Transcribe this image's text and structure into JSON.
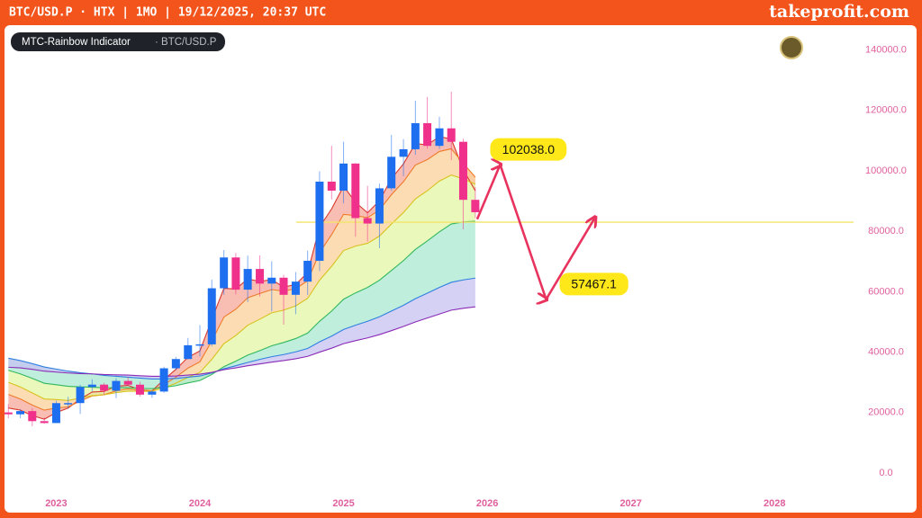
{
  "header": {
    "title": "BTC/USD.P · HTX | 1MO | 19/12/2025, 20:37 UTC",
    "brand": "takeprofit.com"
  },
  "chart_data": {
    "type": "candlestick",
    "indicator": "MTC-Rainbow Indicator",
    "symbol": "· BTC/USD.P",
    "up_color": "#1e6ff0",
    "down_color": "#f0318c",
    "xlim": [
      2022.64,
      2028.55
    ],
    "xticks": [
      2023,
      2024,
      2025,
      2026,
      2027,
      2028
    ],
    "ylim": [
      -7000,
      147000
    ],
    "yticks": [
      {
        "value": 0,
        "label": "0.0"
      },
      {
        "value": 20000,
        "label": "20000.0"
      },
      {
        "value": 40000,
        "label": "40000.0"
      },
      {
        "value": 60000,
        "label": "60000.0"
      },
      {
        "value": 80000,
        "label": "80000.0"
      },
      {
        "value": 100000,
        "label": "100000.0"
      },
      {
        "value": 120000,
        "label": "120000.0"
      },
      {
        "value": 140000,
        "label": "140000.0"
      }
    ],
    "x": [
      2022.667,
      2022.75,
      2022.833,
      2022.917,
      2023,
      2023.083,
      2023.167,
      2023.25,
      2023.333,
      2023.417,
      2023.5,
      2023.583,
      2023.667,
      2023.75,
      2023.833,
      2023.917,
      2024,
      2024.083,
      2024.167,
      2024.25,
      2024.333,
      2024.417,
      2024.5,
      2024.583,
      2024.667,
      2024.75,
      2024.833,
      2024.917,
      2025,
      2025.083,
      2025.167,
      2025.25,
      2025.333,
      2025.417,
      2025.5,
      2025.583,
      2025.667,
      2025.75,
      2025.833,
      2025.917
    ],
    "open": [
      20050,
      19430,
      20490,
      17160,
      16540,
      23130,
      23140,
      28470,
      29250,
      27220,
      30470,
      29230,
      25940,
      26960,
      34650,
      37720,
      42280,
      42580,
      61130,
      71330,
      60670,
      67520,
      62680,
      64630,
      58970,
      63330,
      70220,
      96410,
      93430,
      102410,
      84350,
      82550,
      94210,
      104640,
      107140,
      115760,
      108250,
      114050,
      109600,
      90400
    ],
    "high": [
      22800,
      21100,
      21480,
      18400,
      23950,
      25250,
      29200,
      31000,
      29820,
      31400,
      31800,
      30200,
      27480,
      35200,
      38450,
      44700,
      48970,
      64000,
      73800,
      72800,
      71950,
      71990,
      70080,
      65600,
      66500,
      73600,
      99800,
      108300,
      109600,
      102500,
      95000,
      95750,
      111900,
      110500,
      123200,
      124450,
      117900,
      126200,
      110600,
      94600
    ],
    "low": [
      18150,
      18180,
      15480,
      16250,
      16500,
      21350,
      19550,
      26950,
      25800,
      24800,
      28850,
      25300,
      24900,
      26550,
      34100,
      37600,
      38550,
      41880,
      59000,
      59100,
      56550,
      58400,
      53500,
      49100,
      52550,
      58900,
      66800,
      90500,
      89200,
      78200,
      76600,
      74400,
      93400,
      98200,
      105300,
      107300,
      107250,
      103500,
      80600,
      84400
    ],
    "close": [
      19430,
      20490,
      17160,
      16540,
      23130,
      23140,
      28470,
      29250,
      27220,
      30470,
      29230,
      25940,
      26960,
      34650,
      37720,
      42280,
      42580,
      61130,
      71330,
      60670,
      67520,
      62680,
      64630,
      58970,
      63330,
      70220,
      96410,
      93430,
      102410,
      84350,
      82550,
      94210,
      104640,
      107140,
      115760,
      108250,
      114050,
      109600,
      90400,
      86300
    ],
    "bands": [
      {
        "color": "#d9372b",
        "fill": "#f7a89a",
        "values": [
          21500,
          20800,
          19000,
          17800,
          20000,
          21500,
          24500,
          26800,
          27000,
          28700,
          29000,
          27500,
          27200,
          30900,
          34300,
          38300,
          40400,
          50800,
          61100,
          60900,
          64200,
          63400,
          64000,
          61500,
          62400,
          66300,
          81400,
          87400,
          94900,
          89600,
          86100,
          90100,
          97400,
          102300,
          109000,
          108600,
          111300,
          110500,
          100400,
          93400
        ]
      },
      {
        "color": "#f07a2a",
        "fill": "#fbd29a",
        "values": [
          26000,
          24500,
          22500,
          20800,
          21500,
          21900,
          23800,
          25500,
          25900,
          27200,
          27800,
          27300,
          27200,
          29300,
          31700,
          34700,
          36800,
          43700,
          51600,
          54200,
          58000,
          59400,
          60700,
          60200,
          61000,
          63600,
          72900,
          78900,
          85600,
          85200,
          84500,
          87100,
          92100,
          96400,
          101900,
          103700,
          106400,
          107300,
          102500,
          97900
        ]
      },
      {
        "color": "#d9c21e",
        "fill": "#e3f5a4",
        "values": [
          30000,
          28500,
          26500,
          24500,
          24300,
          24000,
          24800,
          25600,
          25900,
          26600,
          27100,
          27000,
          27000,
          28200,
          29700,
          31700,
          33300,
          37600,
          42800,
          45500,
          48900,
          50900,
          53000,
          53900,
          55300,
          57800,
          63800,
          68400,
          73600,
          75100,
          76000,
          78400,
          82400,
          86200,
          90700,
          93400,
          96600,
          98600,
          97300,
          95600
        ]
      },
      {
        "color": "#31b85c",
        "fill": "#a9e8d2",
        "values": [
          34000,
          32800,
          31300,
          29700,
          29200,
          28700,
          28500,
          28400,
          28200,
          28200,
          28200,
          28000,
          27900,
          28300,
          28900,
          29800,
          30600,
          32600,
          35200,
          37000,
          39000,
          40500,
          42100,
          43200,
          44500,
          46300,
          50200,
          53600,
          57500,
          59600,
          61400,
          63800,
          67000,
          70300,
          74000,
          76800,
          79800,
          82400,
          83100,
          83300
        ]
      },
      {
        "color": "#2f7fe0",
        "fill": "#c6c2f2",
        "values": [
          38000,
          37200,
          36200,
          35100,
          34400,
          33700,
          33200,
          32800,
          32300,
          32000,
          31700,
          31400,
          31100,
          31100,
          31300,
          31700,
          32100,
          33100,
          34500,
          35500,
          36600,
          37600,
          38500,
          39200,
          40100,
          41200,
          43400,
          45300,
          47500,
          48900,
          50200,
          51700,
          53600,
          55500,
          57700,
          59500,
          61400,
          63100,
          63900,
          64500
        ]
      },
      {
        "color": "#8a2bb5",
        "values": [
          35000,
          34800,
          34300,
          33700,
          33400,
          33100,
          32900,
          32800,
          32600,
          32500,
          32400,
          32200,
          32000,
          32000,
          32100,
          32400,
          32700,
          33300,
          34200,
          34800,
          35500,
          36100,
          36700,
          37200,
          37800,
          38600,
          40000,
          41300,
          42800,
          43800,
          44700,
          45800,
          47100,
          48500,
          50000,
          51300,
          52600,
          53900,
          54500,
          55000
        ]
      }
    ],
    "level_line": {
      "value": 83000,
      "from": 2024.67,
      "color": "#f3e46a"
    },
    "projection": {
      "color": "#e8335f",
      "x": [
        2025.93,
        2026.09,
        2026.41,
        2026.75
      ],
      "values": [
        84000,
        102038,
        57467.1,
        84500
      ]
    },
    "annotations": [
      {
        "x": 2026.09,
        "value": 102038,
        "label": "102038.0",
        "color": "#ffe81a"
      },
      {
        "x": 2026.41,
        "value": 57467.1,
        "label": "57467.1",
        "color": "#ffe81a"
      }
    ]
  }
}
